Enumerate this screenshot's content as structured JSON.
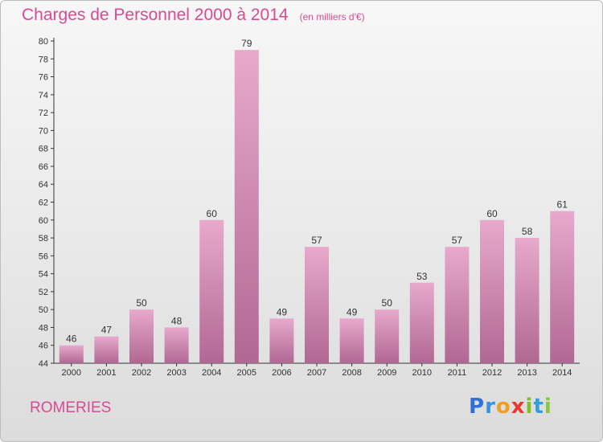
{
  "header": {
    "title": "Charges de Personnel 2000 à 2014",
    "subtitle": "(en milliers d'€)"
  },
  "footer": {
    "commune": "ROMERIES"
  },
  "logo": {
    "text": "Proxiti",
    "letters": [
      "P",
      "r",
      "o",
      "x",
      "i",
      "t",
      "i"
    ],
    "colors": [
      "#2f6fd6",
      "#3a93d8",
      "#f0a020",
      "#e83a2a",
      "#7fbf2a",
      "#2f9fd6",
      "#8cc63f"
    ]
  },
  "colors": {
    "bar_top": "#e8a9cc",
    "bar_bottom": "#b06893",
    "accent": "#d64b93"
  },
  "chart_data": {
    "type": "bar",
    "title": "Charges de Personnel 2000 à 2014",
    "subtitle": "(en milliers d'€)",
    "categories": [
      "2000",
      "2001",
      "2002",
      "2003",
      "2004",
      "2005",
      "2006",
      "2007",
      "2008",
      "2009",
      "2010",
      "2011",
      "2012",
      "2013",
      "2014"
    ],
    "values": [
      46,
      47,
      50,
      48,
      60,
      79,
      49,
      57,
      49,
      50,
      53,
      57,
      60,
      58,
      61
    ],
    "ylim": [
      44,
      80
    ],
    "yticks": [
      44,
      46,
      48,
      50,
      52,
      54,
      56,
      58,
      60,
      62,
      64,
      66,
      68,
      70,
      72,
      74,
      76,
      78,
      80
    ],
    "grid": false,
    "xlabel": "",
    "ylabel": ""
  }
}
